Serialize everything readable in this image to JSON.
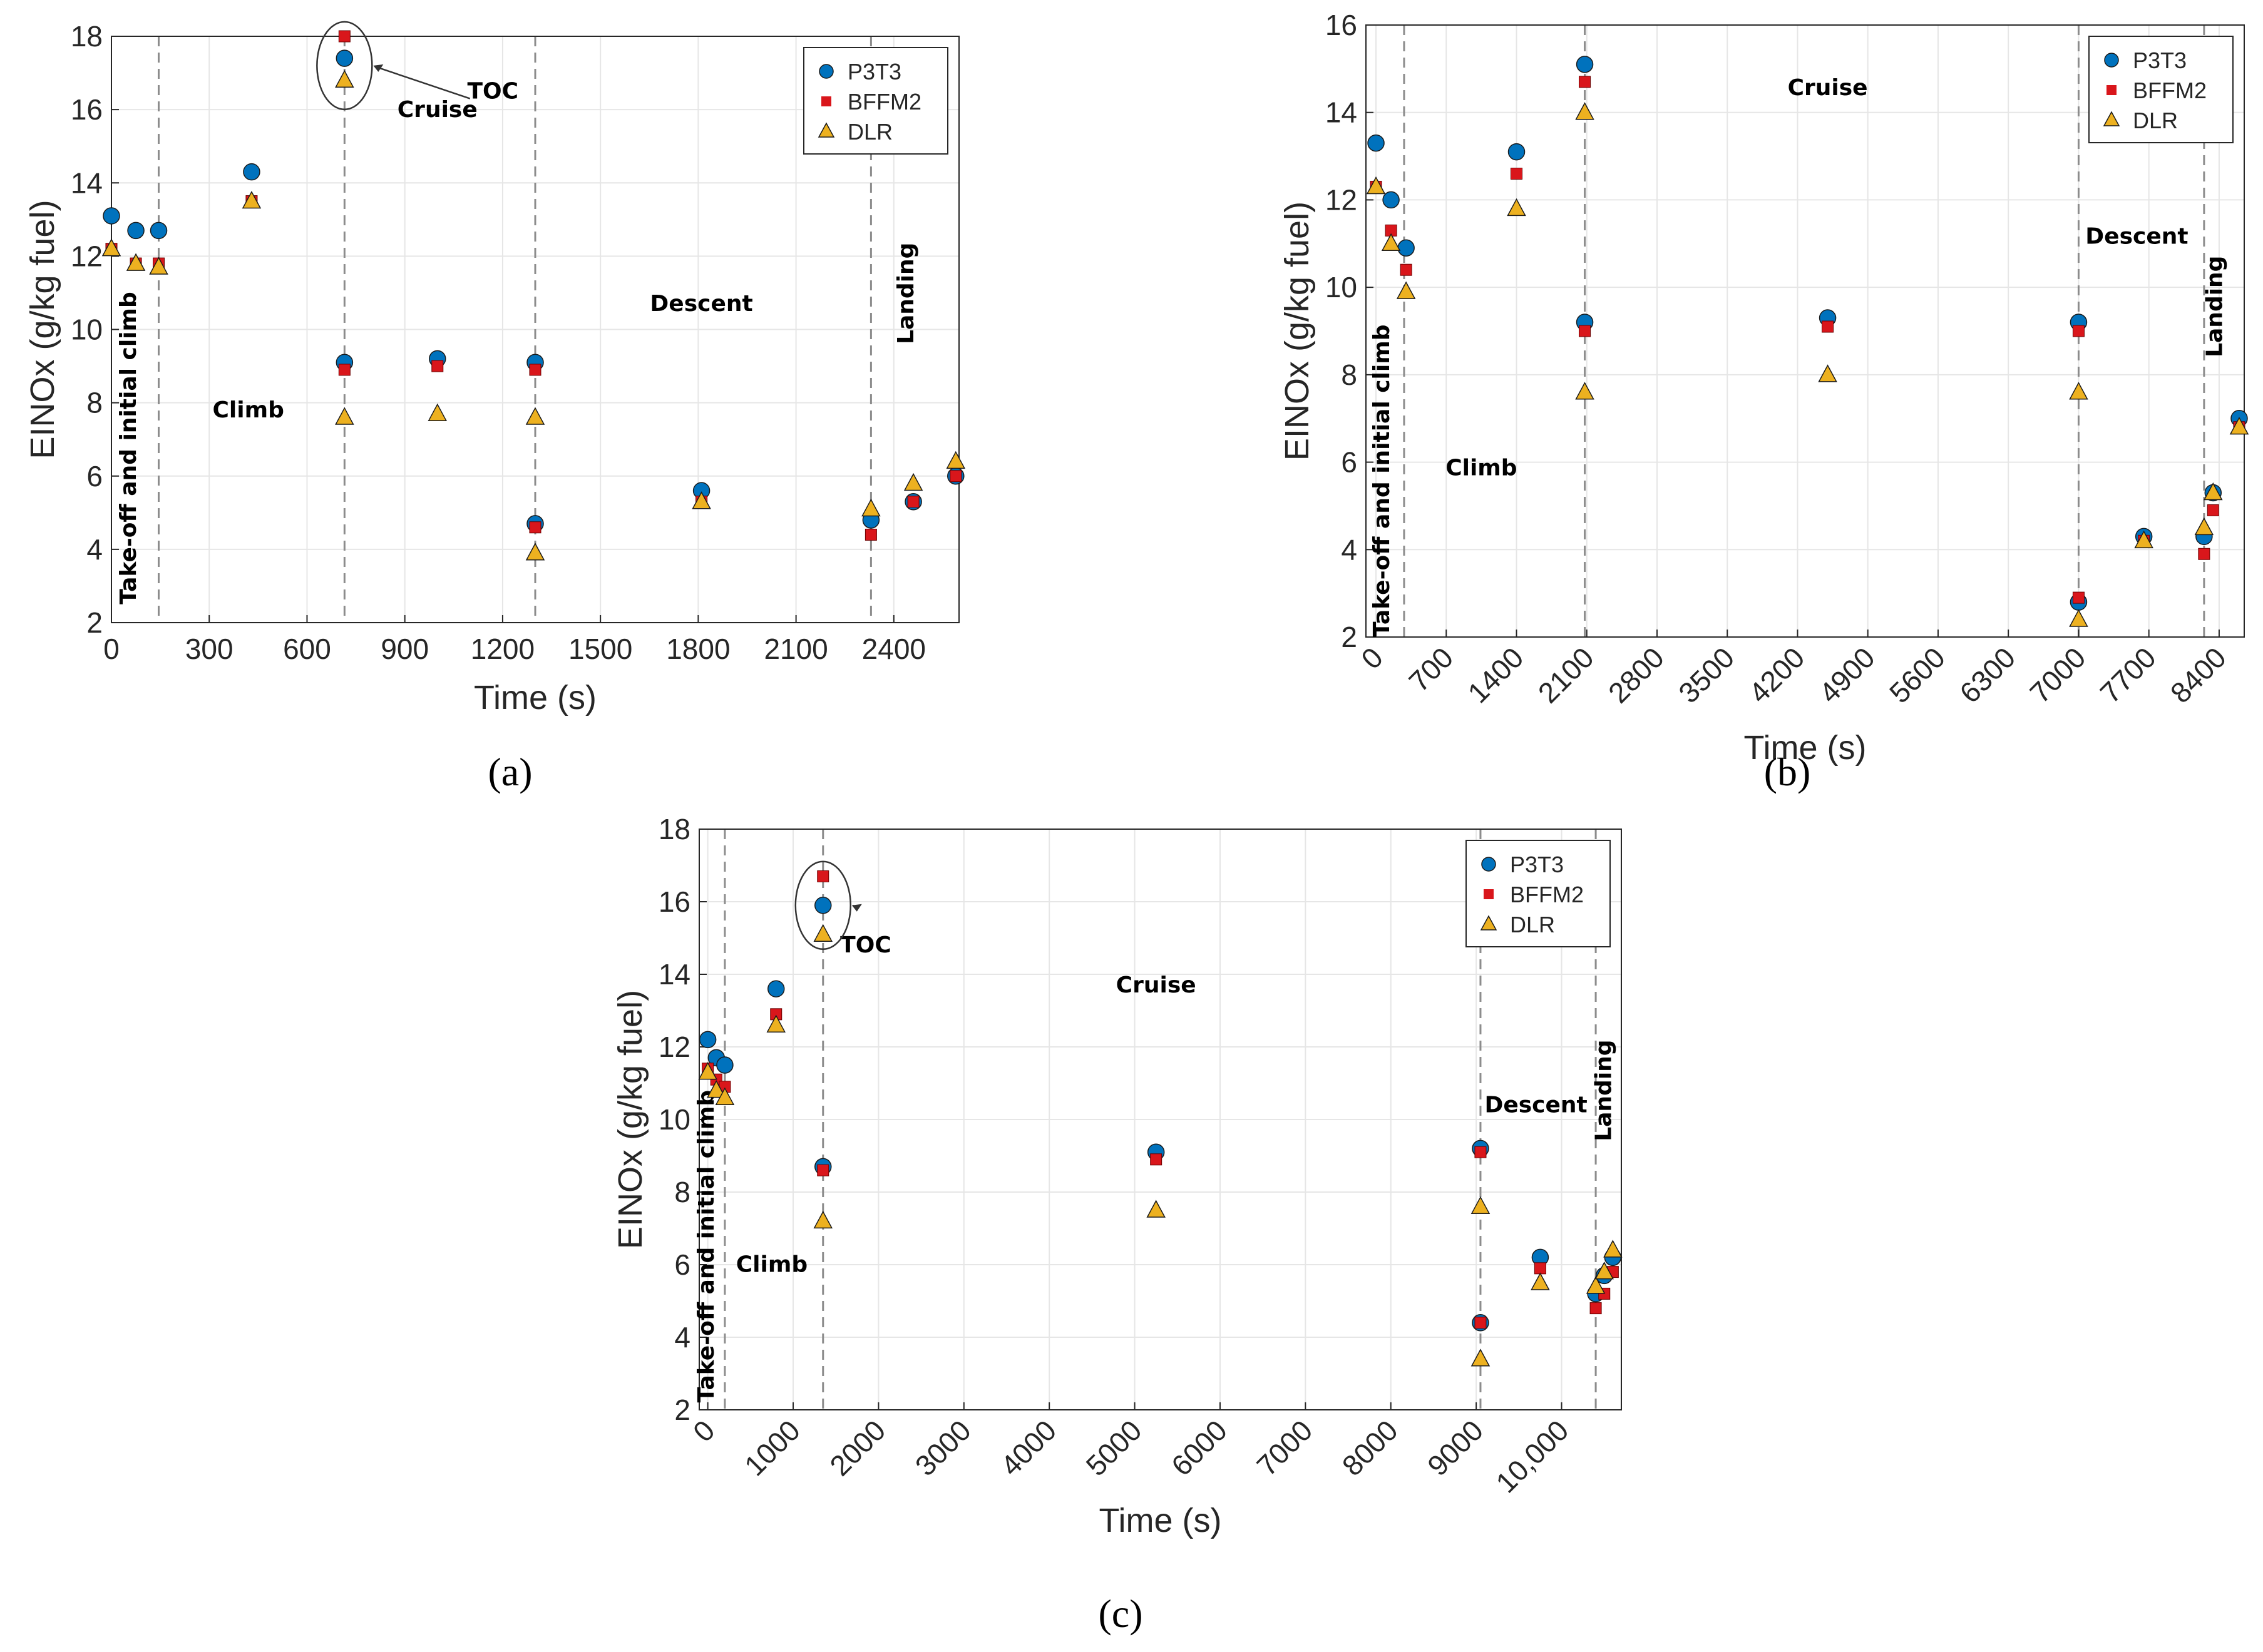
{
  "colors": {
    "P3T3": "#0072BD",
    "BFFM2": "#D9161B",
    "DLR": "#EDB120",
    "grid": "#E6E6E6",
    "vline": "#8C8C8C"
  },
  "panel_labels": [
    "(a)",
    "(b)",
    "(c)"
  ],
  "chart_data": [
    {
      "type": "scatter",
      "xlabel": "Time (s)",
      "ylabel": "EINOx (g/kg fuel)",
      "xlim": [
        0,
        2600
      ],
      "ylim": [
        2,
        18
      ],
      "xticks": [
        0,
        300,
        600,
        900,
        1200,
        1500,
        1800,
        2100,
        2400
      ],
      "xtick_labels": [
        "0",
        "300",
        "600",
        "900",
        "1200",
        "1500",
        "1800",
        "2100",
        "2400"
      ],
      "yticks": [
        2,
        4,
        6,
        8,
        10,
        12,
        14,
        16,
        18
      ],
      "xtick_rotation": 0,
      "grid": true,
      "legend_position": "top-right",
      "phase_lines": [
        145,
        715,
        1300,
        2330
      ],
      "annotations": [
        {
          "text": "Take-off and initial climb",
          "x": 75,
          "y": 2.5,
          "rotate": true
        },
        {
          "text": "Climb",
          "x": 420,
          "y": 7.6
        },
        {
          "text": "Cruise",
          "x": 1000,
          "y": 15.8
        },
        {
          "text": "Descent",
          "x": 1810,
          "y": 10.5
        },
        {
          "text": "Landing",
          "x": 2460,
          "y": 9.6,
          "rotate": true
        },
        {
          "text": "TOC",
          "x": 1170,
          "y": 16.3
        }
      ],
      "toc": {
        "x": 715,
        "y": 17.2,
        "arrow_to": [
          1100,
          16.3
        ]
      },
      "series": [
        {
          "name": "P3T3",
          "marker": "circle",
          "x": [
            0,
            75,
            145,
            430,
            715,
            715,
            1000,
            1300,
            1300,
            1810,
            2330,
            2460,
            2590
          ],
          "y": [
            13.1,
            12.7,
            12.7,
            14.3,
            17.4,
            9.1,
            9.2,
            9.1,
            4.7,
            5.6,
            4.8,
            5.3,
            6.0
          ]
        },
        {
          "name": "BFFM2",
          "marker": "square",
          "x": [
            0,
            75,
            145,
            430,
            715,
            715,
            1000,
            1300,
            1300,
            1810,
            2330,
            2460,
            2590
          ],
          "y": [
            12.2,
            11.8,
            11.8,
            13.5,
            18.0,
            8.9,
            9.0,
            8.9,
            4.6,
            5.3,
            4.4,
            5.3,
            6.0
          ]
        },
        {
          "name": "DLR",
          "marker": "triangle",
          "x": [
            0,
            75,
            145,
            430,
            715,
            715,
            1000,
            1300,
            1300,
            1810,
            2330,
            2460,
            2590
          ],
          "y": [
            12.2,
            11.8,
            11.7,
            13.5,
            16.8,
            7.6,
            7.7,
            7.6,
            3.9,
            5.3,
            5.1,
            5.8,
            6.4
          ]
        }
      ]
    },
    {
      "type": "scatter",
      "xlabel": "Time (s)",
      "ylabel": "EINOx (g/kg fuel)",
      "xlim": [
        -100,
        8650
      ],
      "ylim": [
        2,
        16
      ],
      "xticks": [
        0,
        700,
        1400,
        2100,
        2800,
        3500,
        4200,
        4900,
        5600,
        6300,
        7000,
        7700,
        8400
      ],
      "xtick_labels": [
        "0",
        "700",
        "1400",
        "2100",
        "2800",
        "3500",
        "4200",
        "4900",
        "5600",
        "6300",
        "7000",
        "7700",
        "8400"
      ],
      "yticks": [
        2,
        4,
        6,
        8,
        10,
        12,
        14,
        16
      ],
      "xtick_rotation": -45,
      "grid": true,
      "legend_position": "top-right",
      "phase_lines": [
        280,
        2080,
        7000,
        8250
      ],
      "annotations": [
        {
          "text": "Take-off and initial climb",
          "x": 130,
          "y": 2.0,
          "rotate": true
        },
        {
          "text": "Climb",
          "x": 1050,
          "y": 5.7
        },
        {
          "text": "Cruise",
          "x": 4500,
          "y": 14.4
        },
        {
          "text": "Descent",
          "x": 7580,
          "y": 11.0
        },
        {
          "text": "Landing",
          "x": 8430,
          "y": 8.4,
          "rotate": true
        }
      ],
      "series": [
        {
          "name": "P3T3",
          "marker": "circle",
          "x": [
            0,
            150,
            300,
            1400,
            2080,
            2080,
            4500,
            7000,
            7000,
            7650,
            8250,
            8340,
            8600
          ],
          "y": [
            13.3,
            12.0,
            10.9,
            13.1,
            15.1,
            9.2,
            9.3,
            9.2,
            2.8,
            4.3,
            4.3,
            5.3,
            7.0
          ]
        },
        {
          "name": "BFFM2",
          "marker": "square",
          "x": [
            0,
            150,
            300,
            1400,
            2080,
            2080,
            4500,
            7000,
            7000,
            7650,
            8250,
            8340,
            8600
          ],
          "y": [
            12.3,
            11.3,
            10.4,
            12.6,
            14.7,
            9.0,
            9.1,
            9.0,
            2.9,
            4.2,
            3.9,
            4.9,
            6.8
          ]
        },
        {
          "name": "DLR",
          "marker": "triangle",
          "x": [
            0,
            150,
            300,
            1400,
            2080,
            2080,
            4500,
            7000,
            7000,
            7650,
            8250,
            8340,
            8600
          ],
          "y": [
            12.3,
            11.0,
            9.9,
            11.8,
            14.0,
            7.6,
            8.0,
            7.6,
            2.4,
            4.2,
            4.5,
            5.3,
            6.8
          ]
        }
      ]
    },
    {
      "type": "scatter",
      "xlabel": "Time (s)",
      "ylabel": "EINOx (g/kg fuel)",
      "xlim": [
        -100,
        10700
      ],
      "ylim": [
        2,
        18
      ],
      "xticks": [
        0,
        1000,
        2000,
        3000,
        4000,
        5000,
        6000,
        7000,
        8000,
        9000,
        10000
      ],
      "xtick_labels": [
        "0",
        "1000",
        "2000",
        "3000",
        "4000",
        "5000",
        "6000",
        "7000",
        "8000",
        "9000",
        "10,000"
      ],
      "yticks": [
        2,
        4,
        6,
        8,
        10,
        12,
        14,
        16,
        18
      ],
      "xtick_rotation": -45,
      "grid": true,
      "legend_position": "top-right",
      "phase_lines": [
        200,
        1350,
        9050,
        10400
      ],
      "annotations": [
        {
          "text": "Take-off and initial climb",
          "x": 70,
          "y": 2.2,
          "rotate": true
        },
        {
          "text": "Climb",
          "x": 750,
          "y": 5.8
        },
        {
          "text": "Cruise",
          "x": 5250,
          "y": 13.5
        },
        {
          "text": "Descent",
          "x": 9700,
          "y": 10.2
        },
        {
          "text": "Landing",
          "x": 10580,
          "y": 9.4,
          "rotate": true
        },
        {
          "text": "TOC",
          "x": 1850,
          "y": 14.6
        }
      ],
      "toc": {
        "x": 1350,
        "y": 15.9,
        "arrow_to": [
          1700,
          15.9
        ]
      },
      "series": [
        {
          "name": "P3T3",
          "marker": "circle",
          "x": [
            0,
            100,
            200,
            800,
            1350,
            1350,
            5250,
            9050,
            9050,
            9750,
            10400,
            10500,
            10600
          ],
          "y": [
            12.2,
            11.7,
            11.5,
            13.6,
            15.9,
            8.7,
            9.1,
            9.2,
            4.4,
            6.2,
            5.2,
            5.7,
            6.2
          ]
        },
        {
          "name": "BFFM2",
          "marker": "square",
          "x": [
            0,
            100,
            200,
            800,
            1350,
            1350,
            5250,
            9050,
            9050,
            9750,
            10400,
            10500,
            10600
          ],
          "y": [
            11.4,
            11.1,
            10.9,
            12.9,
            16.7,
            8.6,
            8.9,
            9.1,
            4.4,
            5.9,
            4.8,
            5.2,
            5.8
          ]
        },
        {
          "name": "DLR",
          "marker": "triangle",
          "x": [
            0,
            100,
            200,
            800,
            1350,
            1350,
            5250,
            9050,
            9050,
            9750,
            10400,
            10500,
            10600
          ],
          "y": [
            11.3,
            10.8,
            10.6,
            12.6,
            15.1,
            7.2,
            7.5,
            7.6,
            3.4,
            5.5,
            5.4,
            5.8,
            6.4
          ]
        }
      ]
    }
  ]
}
